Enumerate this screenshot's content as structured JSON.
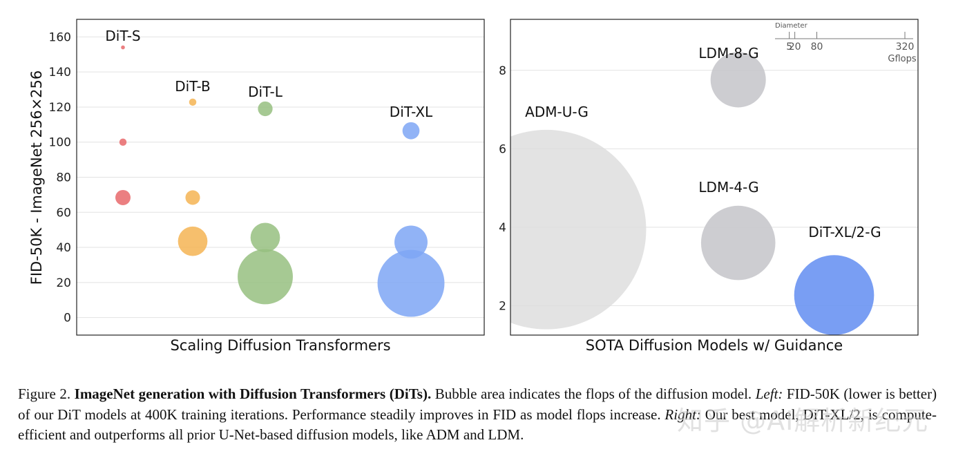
{
  "chart_data": [
    {
      "type": "scatter",
      "xlabel": "Scaling Diffusion Transformers",
      "ylabel": "FID-50K - ImageNet 256×256",
      "ylim": [
        -10,
        170
      ],
      "yticks": [
        0,
        20,
        40,
        60,
        80,
        100,
        120,
        140,
        160
      ],
      "grid": true,
      "series": [
        {
          "name": "DiT-S",
          "color": "#e8686b",
          "x": 0,
          "y": [
            154,
            100,
            68.4
          ],
          "gflops": [
            0.4,
            1.4,
            6.1
          ]
        },
        {
          "name": "DiT-B",
          "color": "#f5b454",
          "x": 1,
          "y": [
            122.8,
            68.4,
            43.5
          ],
          "gflops": [
            1.4,
            5.6,
            23
          ]
        },
        {
          "name": "DiT-L",
          "color": "#97bf80",
          "x": 2,
          "y": [
            119,
            45.6,
            23.3
          ],
          "gflops": [
            5.7,
            23,
            80.7
          ]
        },
        {
          "name": "DiT-XL",
          "color": "#7ea6f5",
          "x": 3,
          "y": [
            106.5,
            43,
            19.5
          ],
          "gflops": [
            7.7,
            29,
            118.6
          ]
        }
      ]
    },
    {
      "type": "scatter",
      "xlabel": "SOTA Diffusion Models w/ Guidance",
      "ylabel": "",
      "ylim": [
        1.25,
        9.3
      ],
      "yticks": [
        2,
        4,
        6,
        8
      ],
      "grid": true,
      "points": [
        {
          "name": "ADM-U-G",
          "x": 0.3,
          "y": 3.94,
          "gflops": 742,
          "color": "#dcdcdc"
        },
        {
          "name": "LDM-8-G",
          "x": 1.9,
          "y": 7.76,
          "gflops": 57,
          "color": "#c8c8cc"
        },
        {
          "name": "LDM-4-G",
          "x": 1.9,
          "y": 3.6,
          "gflops": 103,
          "color": "#c8c8cc"
        },
        {
          "name": "DiT-XL/2-G",
          "x": 2.7,
          "y": 2.27,
          "gflops": 119,
          "color": "#6a93f2"
        }
      ],
      "legend": {
        "title": "Diameter",
        "ticks": [
          5,
          20,
          80,
          320
        ],
        "unit": "Gflops",
        "placement": "top-right"
      }
    }
  ],
  "caption": {
    "fig_label": "Figure 2.",
    "bold_title": "ImageNet generation with Diffusion Transformers (DiTs).",
    "text1": "Bubble area indicates the flops of the diffusion model.",
    "left_label": "Left:",
    "text2": "FID-50K (lower is better) of our DiT models at 400K training iterations. Performance steadily improves in FID as model flops increase.",
    "right_label": "Right:",
    "text3": "Our best model, DiT-XL/2, is compute-efficient and outperforms all prior U-Net-based diffusion models, like ADM and LDM."
  },
  "watermark": "知乎 @AI解析新纪元"
}
